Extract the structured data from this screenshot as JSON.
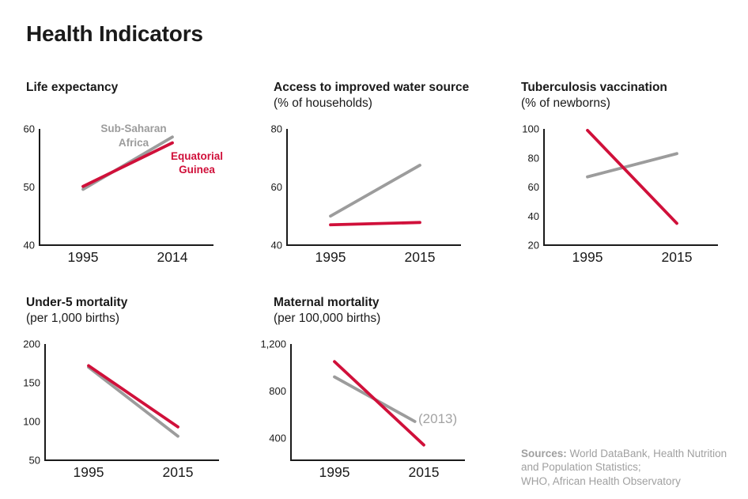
{
  "header": {
    "title": "Health Indicators"
  },
  "colors": {
    "red": "#d0103a",
    "gray": "#9c9c9c",
    "axis": "#1a1a1a",
    "muted_text": "#a0a0a0"
  },
  "chart_data": [
    {
      "type": "line",
      "title": "Life expectancy",
      "subtitle": "",
      "xlim": [
        1995,
        2014
      ],
      "ylim": [
        40,
        60
      ],
      "xticks": [
        1995,
        2014
      ],
      "xtick_labels": [
        "1995",
        "2014"
      ],
      "yticks": [
        40,
        50,
        60
      ],
      "ytick_labels": [
        "40",
        "50",
        "60"
      ],
      "grid": false,
      "series": [
        {
          "name": "Sub-Saharan Africa",
          "color": "#9c9c9c",
          "x": [
            1995,
            2014
          ],
          "values": [
            49.6,
            58.6
          ]
        },
        {
          "name": "Equatorial Guinea",
          "color": "#d0103a",
          "x": [
            1995,
            2014
          ],
          "values": [
            50.1,
            57.6
          ]
        }
      ],
      "annotations": [
        {
          "lines": [
            "Sub-Saharan",
            "Africa"
          ],
          "x": 167,
          "y": 14,
          "line_height": 18,
          "size": 13.5,
          "weight": "bold",
          "color": "#9c9c9c",
          "anchor": "middle"
        },
        {
          "lines": [
            "Equatorial",
            "Guinea"
          ],
          "x": 247,
          "y": 49,
          "line_height": 17,
          "size": 13.5,
          "weight": "bold",
          "color": "#d0103a",
          "anchor": "middle"
        }
      ],
      "layout": {
        "axis_x": 48
      }
    },
    {
      "type": "line",
      "title": "Access to improved water source",
      "subtitle": "(% of households)",
      "xlim": [
        1995,
        2015
      ],
      "ylim": [
        40,
        80
      ],
      "xticks": [
        1995,
        2015
      ],
      "xtick_labels": [
        "1995",
        "2015"
      ],
      "yticks": [
        40,
        60,
        80
      ],
      "ytick_labels": [
        "40",
        "60",
        "80"
      ],
      "grid": false,
      "series": [
        {
          "name": "Sub-Saharan Africa",
          "color": "#9c9c9c",
          "x": [
            1995,
            2015
          ],
          "values": [
            50,
            67.5
          ]
        },
        {
          "name": "Equatorial Guinea",
          "color": "#d0103a",
          "x": [
            1995,
            2015
          ],
          "values": [
            47,
            47.8
          ]
        }
      ],
      "annotations": [],
      "layout": {
        "axis_x": 48
      }
    },
    {
      "type": "line",
      "title": "Tuberculosis vaccination",
      "subtitle": "(% of newborns)",
      "xlim": [
        1995,
        2015
      ],
      "ylim": [
        20,
        100
      ],
      "xticks": [
        1995,
        2015
      ],
      "xtick_labels": [
        "1995",
        "2015"
      ],
      "yticks": [
        20,
        40,
        60,
        80,
        100
      ],
      "ytick_labels": [
        "20",
        "40",
        "60",
        "80",
        "100"
      ],
      "grid": false,
      "series": [
        {
          "name": "Sub-Saharan Africa",
          "color": "#9c9c9c",
          "x": [
            1995,
            2015
          ],
          "values": [
            67,
            83
          ]
        },
        {
          "name": "Equatorial Guinea",
          "color": "#d0103a",
          "x": [
            1995,
            2015
          ],
          "values": [
            99,
            35
          ]
        }
      ],
      "annotations": [],
      "layout": {
        "axis_x": 60
      }
    },
    {
      "type": "line",
      "title": "Under-5 mortality",
      "subtitle": "(per 1,000 births)",
      "xlim": [
        1995,
        2015
      ],
      "ylim": [
        50,
        200
      ],
      "xticks": [
        1995,
        2015
      ],
      "xtick_labels": [
        "1995",
        "2015"
      ],
      "yticks": [
        50,
        100,
        150,
        200
      ],
      "ytick_labels": [
        "50",
        "100",
        "150",
        "200"
      ],
      "grid": false,
      "series": [
        {
          "name": "Sub-Saharan Africa",
          "color": "#9c9c9c",
          "x": [
            1995,
            2015
          ],
          "values": [
            170,
            81
          ]
        },
        {
          "name": "Equatorial Guinea",
          "color": "#d0103a",
          "x": [
            1995,
            2015
          ],
          "values": [
            172,
            93
          ]
        }
      ],
      "annotations": [],
      "layout": {
        "axis_x": 55
      }
    },
    {
      "type": "line",
      "title": "Maternal mortality",
      "subtitle": "(per 100,000 births)",
      "xlim": [
        1995,
        2015
      ],
      "ylim": [
        210,
        1200
      ],
      "xticks": [
        1995,
        2015
      ],
      "xtick_labels": [
        "1995",
        "2015"
      ],
      "yticks": [
        400,
        800,
        1200
      ],
      "ytick_labels": [
        "400",
        "800",
        "1,200"
      ],
      "grid": false,
      "series": [
        {
          "name": "Sub-Saharan Africa (to 2013)",
          "color": "#9c9c9c",
          "x": [
            1995,
            2013
          ],
          "values": [
            920,
            540
          ]
        },
        {
          "name": "Equatorial Guinea",
          "color": "#d0103a",
          "x": [
            1995,
            2015
          ],
          "values": [
            1050,
            340
          ]
        }
      ],
      "annotations": [
        {
          "lines": [
            "(2013)"
          ],
          "x": 214,
          "y": 110,
          "line_height": 18,
          "size": 17,
          "weight": "normal",
          "color": "#a3a3a3",
          "anchor": "start"
        }
      ],
      "layout": {
        "axis_x": 53
      }
    }
  ],
  "sources": {
    "label": "Sources:",
    "lines": [
      "World DataBank, Health Nutrition",
      "and Population Statistics;",
      "WHO, African Health Observatory"
    ]
  }
}
